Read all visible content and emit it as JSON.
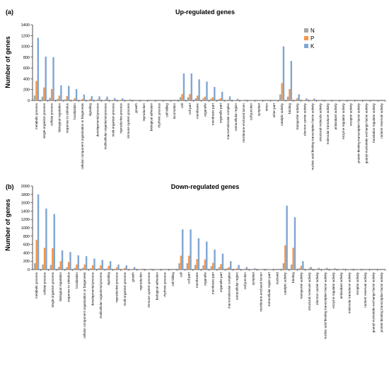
{
  "chart_data": [
    {
      "panel": "(a)",
      "type": "bar",
      "title": "Up-regulated genes",
      "ylabel": "Number of genes",
      "ylim": [
        0,
        1400
      ],
      "yticks": [
        0,
        200,
        400,
        600,
        800,
        1000,
        1200,
        1400
      ],
      "legend": "top-right",
      "categories": [
        "metabolic process",
        "single-organism process",
        "cellular process",
        "biological regulation",
        "response to stimulus",
        "localization",
        "cellular component organization or biogenesis",
        "signaling",
        "developmental process",
        "multicellular organismal process",
        "multi-organism process",
        "reproductive process",
        "immune system process",
        "growth",
        "reproduction",
        "biological adhesion",
        "rhythmic process",
        "cell killing",
        "locomotion",
        "cell",
        "cell part",
        "membrane",
        "organelle",
        "membrane part",
        "organelle part",
        "macromolecular complex",
        "extracellular region",
        "membrane-enclosed lumen",
        "cell junction",
        "symplast",
        "virion",
        "virion part",
        "catalytic activity",
        "binding",
        "transporter activity",
        "electron carrier activity",
        "nucleic acid binding transcription factor activity",
        "structural molecule activity",
        "molecular transducer activity",
        "antioxidant activity",
        "enzyme regulator activity",
        "receptor activity",
        "protein binding transcription factor activity",
        "guanyl-nucleotide exchange factor activity",
        "translation regulator activity",
        "nutrient reservoir activity"
      ],
      "series": [
        {
          "name": "N",
          "color": "#a6a6a6",
          "values": [
            90,
            70,
            50,
            30,
            20,
            10,
            10,
            8,
            8,
            8,
            5,
            5,
            3,
            2,
            2,
            1,
            1,
            0,
            0,
            60,
            60,
            40,
            45,
            35,
            20,
            10,
            8,
            5,
            3,
            2,
            1,
            1,
            110,
            70,
            15,
            5,
            5,
            3,
            2,
            2,
            2,
            1,
            1,
            0,
            0,
            0
          ]
        },
        {
          "name": "P",
          "color": "#f79646",
          "values": [
            360,
            240,
            210,
            90,
            80,
            40,
            30,
            25,
            20,
            20,
            12,
            10,
            5,
            3,
            3,
            2,
            1,
            1,
            0,
            120,
            120,
            90,
            70,
            60,
            40,
            15,
            10,
            5,
            3,
            2,
            1,
            1,
            320,
            210,
            40,
            10,
            10,
            5,
            5,
            3,
            3,
            2,
            1,
            1,
            1,
            0
          ]
        },
        {
          "name": "K",
          "color": "#7fa6d4",
          "values": [
            1160,
            810,
            800,
            280,
            270,
            210,
            110,
            80,
            75,
            70,
            45,
            40,
            20,
            10,
            8,
            5,
            3,
            2,
            1,
            500,
            500,
            390,
            350,
            250,
            160,
            75,
            30,
            15,
            8,
            5,
            2,
            2,
            1000,
            730,
            115,
            40,
            35,
            15,
            10,
            8,
            8,
            5,
            3,
            2,
            2,
            1
          ]
        }
      ]
    },
    {
      "panel": "(b)",
      "type": "bar",
      "title": "Down-regulated genes",
      "ylabel": "Number of genes",
      "ylim": [
        0,
        2000
      ],
      "yticks": [
        0,
        200,
        400,
        600,
        800,
        1000,
        1200,
        1400,
        1600,
        1800,
        2000
      ],
      "legend": "none",
      "categories": [
        "metabolic process",
        "cellular process",
        "single-organism process",
        "biological regulation",
        "response to stimulus",
        "localization",
        "cellular component organization or biogenesis",
        "developmental process",
        "multicellular organismal process",
        "signaling",
        "reproductive process",
        "multi-organism process",
        "growth",
        "reproduction",
        "immune system process",
        "biological adhesion",
        "rhythmic process",
        "cell killing",
        "cell",
        "cell part",
        "membrane",
        "organelle",
        "membrane part",
        "organelle part",
        "macromolecular complex",
        "extracellular region",
        "cell junction",
        "symplast",
        "membrane-enclosed lumen",
        "extracellular region part",
        "nucleoid",
        "catalytic activity",
        "binding",
        "transporter activity",
        "structural molecule activity",
        "electron carrier activity",
        "nucleic acid binding transcription factor activity",
        "enzyme regulator activity",
        "antioxidant activity",
        "molecular transducer activity",
        "receptor activity",
        "nutrient reservoir activity",
        "guanyl-nucleotide exchange factor activity",
        "protein binding transcription factor activity"
      ],
      "series": [
        {
          "name": "N",
          "color": "#a6a6a6",
          "values": [
            150,
            120,
            110,
            60,
            55,
            40,
            40,
            30,
            30,
            25,
            15,
            12,
            8,
            5,
            5,
            3,
            2,
            1,
            150,
            150,
            110,
            100,
            80,
            60,
            30,
            15,
            10,
            10,
            5,
            3,
            1,
            150,
            120,
            30,
            10,
            8,
            8,
            5,
            5,
            3,
            2,
            1,
            1,
            1
          ]
        },
        {
          "name": "P",
          "color": "#f79646",
          "values": [
            710,
            520,
            510,
            200,
            180,
            120,
            120,
            100,
            100,
            90,
            50,
            40,
            20,
            10,
            10,
            5,
            3,
            2,
            330,
            330,
            250,
            240,
            160,
            130,
            60,
            30,
            20,
            15,
            10,
            5,
            2,
            580,
            520,
            90,
            30,
            20,
            20,
            15,
            10,
            8,
            5,
            3,
            2,
            2
          ]
        },
        {
          "name": "K",
          "color": "#7fa6d4",
          "values": [
            1800,
            1460,
            1330,
            460,
            420,
            340,
            320,
            260,
            230,
            200,
            120,
            100,
            60,
            20,
            20,
            10,
            5,
            3,
            960,
            960,
            750,
            670,
            480,
            380,
            200,
            110,
            60,
            30,
            15,
            8,
            2,
            1530,
            1250,
            200,
            60,
            40,
            40,
            30,
            20,
            15,
            10,
            5,
            3,
            3
          ]
        }
      ]
    }
  ]
}
